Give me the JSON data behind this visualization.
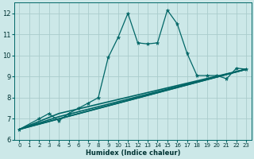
{
  "title": "",
  "xlabel": "Humidex (Indice chaleur)",
  "bg_color": "#cce8e8",
  "grid_color": "#aacccc",
  "line_color": "#006666",
  "xlim": [
    -0.5,
    23.5
  ],
  "ylim": [
    6,
    12.5
  ],
  "xticks": [
    0,
    1,
    2,
    3,
    4,
    5,
    6,
    7,
    8,
    9,
    10,
    11,
    12,
    13,
    14,
    15,
    16,
    17,
    18,
    19,
    20,
    21,
    22,
    23
  ],
  "yticks": [
    6,
    7,
    8,
    9,
    10,
    11,
    12
  ],
  "series_jagged": {
    "x": [
      0,
      2,
      3,
      4,
      5,
      6,
      7,
      8,
      9,
      10,
      11,
      12,
      13,
      14,
      15,
      16,
      17,
      18,
      19,
      20,
      21,
      22,
      23
    ],
    "y": [
      6.5,
      7.0,
      7.25,
      6.9,
      7.25,
      7.5,
      7.75,
      8.0,
      9.9,
      10.85,
      12.0,
      10.6,
      10.55,
      10.6,
      12.15,
      11.5,
      10.1,
      9.05,
      9.05,
      9.05,
      8.9,
      9.4,
      9.35
    ]
  },
  "series_linear": [
    {
      "x": [
        0,
        23
      ],
      "y": [
        6.5,
        9.35
      ]
    },
    {
      "x": [
        0,
        4,
        23
      ],
      "y": [
        6.5,
        7.25,
        9.35
      ]
    },
    {
      "x": [
        0,
        4,
        23
      ],
      "y": [
        6.5,
        7.1,
        9.35
      ]
    },
    {
      "x": [
        0,
        4,
        23
      ],
      "y": [
        6.5,
        7.0,
        9.35
      ]
    }
  ]
}
